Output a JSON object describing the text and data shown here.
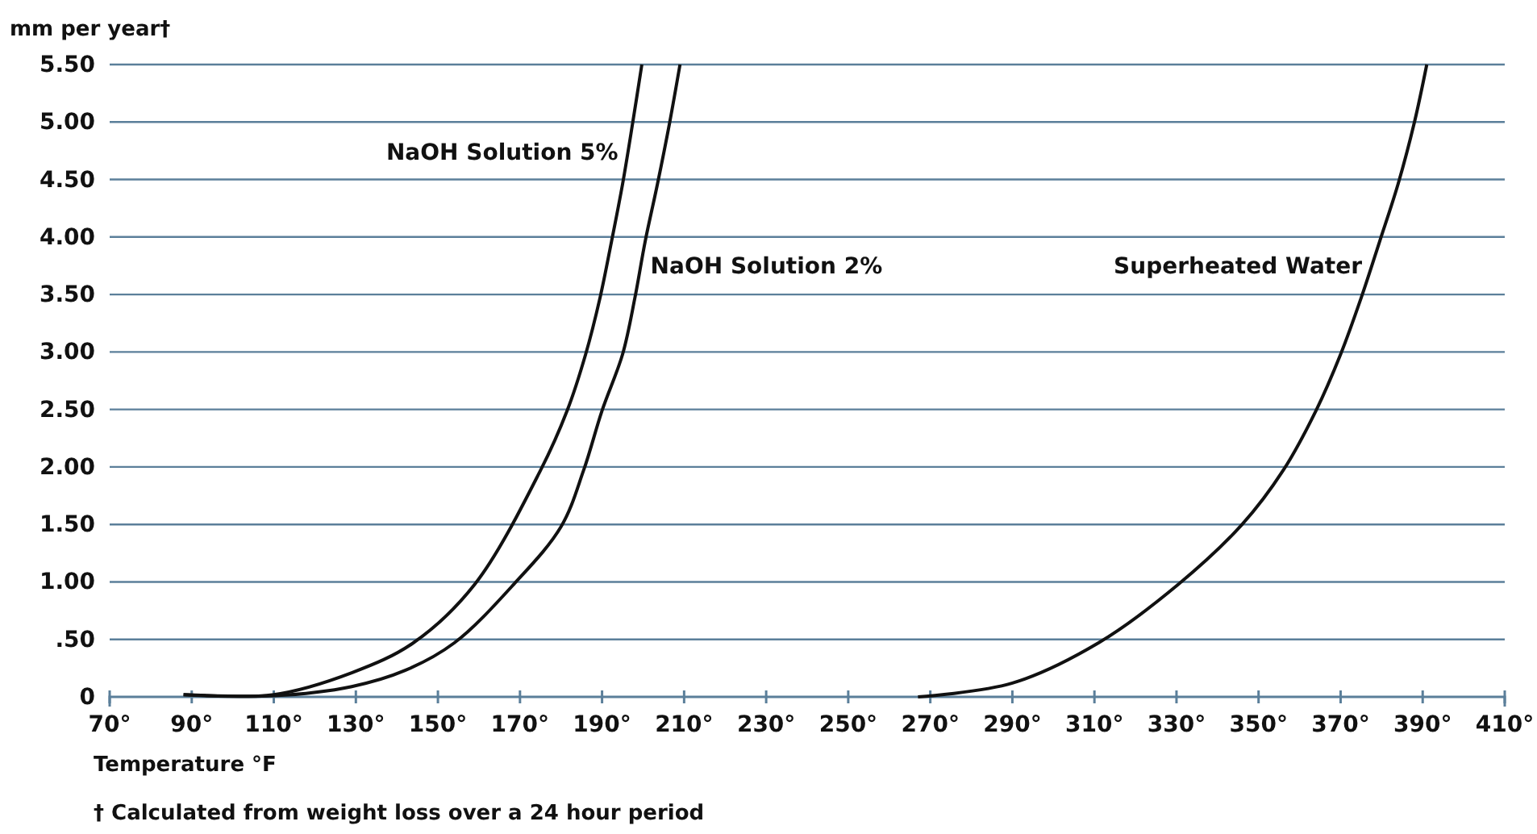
{
  "chart_data": {
    "type": "line",
    "ylabel": "mm per year†",
    "xlabel": "Temperature °F",
    "annotations": [
      "† Calculated from weight loss over a 24 hour period"
    ],
    "xlim": [
      70,
      410
    ],
    "xticks": [
      {
        "value": 70,
        "label": "70°"
      },
      {
        "value": 90,
        "label": "90°"
      },
      {
        "value": 110,
        "label": "110°"
      },
      {
        "value": 130,
        "label": "130°"
      },
      {
        "value": 150,
        "label": "150°"
      },
      {
        "value": 170,
        "label": "170°"
      },
      {
        "value": 190,
        "label": "190°"
      },
      {
        "value": 210,
        "label": "210°"
      },
      {
        "value": 230,
        "label": "230°"
      },
      {
        "value": 250,
        "label": "250°"
      },
      {
        "value": 270,
        "label": "270°"
      },
      {
        "value": 290,
        "label": "290°"
      },
      {
        "value": 310,
        "label": "310°"
      },
      {
        "value": 330,
        "label": "330°"
      },
      {
        "value": 350,
        "label": "350°"
      },
      {
        "value": 370,
        "label": "370°"
      },
      {
        "value": 390,
        "label": "390°"
      },
      {
        "value": 410,
        "label": "410°"
      }
    ],
    "ylim": [
      0,
      5.5
    ],
    "yticks": [
      0,
      {
        "value": 0.5,
        "label": ".50"
      },
      {
        "value": 1,
        "label": "1.00"
      },
      {
        "value": 1.5,
        "label": "1.50"
      },
      {
        "value": 2,
        "label": "2.00"
      },
      {
        "value": 2.5,
        "label": "2.50"
      },
      {
        "value": 3,
        "label": "3.00"
      },
      {
        "value": 3.5,
        "label": "3.50"
      },
      {
        "value": 4,
        "label": "4.00"
      },
      {
        "value": 4.5,
        "label": "4.50"
      },
      {
        "value": 5,
        "label": "5.00"
      },
      {
        "value": 5.5,
        "label": "5.50"
      }
    ],
    "grid": "y",
    "marker": "none",
    "line_style": "solid",
    "series": [
      {
        "name": "NaOH Solution 5%",
        "color": "#111111",
        "x": [
          88,
          110,
          129,
          144,
          159,
          175,
          181.5,
          186,
          189.5,
          192.3,
          195,
          197.5,
          199.7
        ],
        "values": [
          0.02,
          0.02,
          0.21,
          0.47,
          0.98,
          1.97,
          2.49,
          2.98,
          3.47,
          3.96,
          4.46,
          5.0,
          5.5
        ]
      },
      {
        "name": "NaOH Solution 2%",
        "color": "#111111",
        "x": [
          88,
          110,
          129,
          142,
          154,
          168.5,
          180,
          185.5,
          190,
          195,
          198,
          200.5,
          203.5,
          206.5,
          209
        ],
        "values": [
          0.02,
          0.01,
          0.09,
          0.23,
          0.47,
          0.98,
          1.48,
          1.97,
          2.49,
          2.98,
          3.47,
          3.96,
          4.46,
          5.0,
          5.5
        ]
      },
      {
        "name": "Superheated Water",
        "color": "#111111",
        "x": [
          267,
          290,
          311,
          330.5,
          346,
          356,
          364,
          370,
          375,
          379.5,
          384,
          388,
          391
        ],
        "values": [
          0,
          0.12,
          0.47,
          0.98,
          1.5,
          1.97,
          2.49,
          2.98,
          3.47,
          3.96,
          4.46,
          5.0,
          5.5
        ]
      }
    ]
  }
}
